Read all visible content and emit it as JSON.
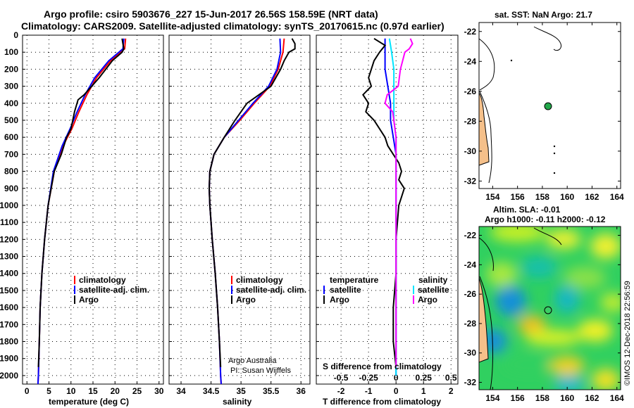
{
  "header": {
    "line1": "Argo profile: csiro 5903676_227 15-Jun-2017 26.56S 158.59E (NRT data)",
    "line2": "Climatology: CARS2009. Satellite-adjusted climatology: synTS_20170615.nc (0.97d earlier)"
  },
  "colors": {
    "climatology": "#ff0000",
    "satellite": "#0000ff",
    "argo": "#000000",
    "temp_satellite_diff": "#00e5ff",
    "sal_argo_diff": "#ff00ff",
    "land": "#f5c08a"
  },
  "depth_ticks": [
    "0",
    "100",
    "200",
    "300",
    "400",
    "500",
    "600",
    "700",
    "800",
    "900",
    "1000",
    "1100",
    "1200",
    "1300",
    "1400",
    "1500",
    "1600",
    "1700",
    "1800",
    "1900",
    "2000"
  ],
  "chart_data": [
    {
      "type": "line",
      "xlabel": "temperature (deg C)",
      "x_ticks": [
        "0",
        "5",
        "10",
        "15",
        "20",
        "25",
        "30"
      ],
      "xlim": [
        -1,
        31
      ],
      "ylim": [
        2050,
        0
      ],
      "legend": [
        "climatology",
        "satellite-adj. clim.",
        "Argo"
      ],
      "series": [
        {
          "name": "climatology",
          "depth": [
            20,
            80,
            150,
            250,
            350,
            450,
            550,
            650,
            800,
            1000,
            1200,
            1400,
            1600,
            1800,
            2000,
            2050
          ],
          "values": [
            22.4,
            22.2,
            19.0,
            15.8,
            13.6,
            11.8,
            10.2,
            8.2,
            6.2,
            4.8,
            4.0,
            3.4,
            3.0,
            2.8,
            2.6,
            2.5
          ]
        },
        {
          "name": "satellite-adj. clim.",
          "depth": [
            20,
            80,
            150,
            250,
            350,
            450,
            550,
            650,
            800,
            1000,
            1200,
            1400,
            1600,
            1800,
            2000,
            2050
          ],
          "values": [
            22.0,
            21.8,
            18.6,
            15.4,
            13.2,
            11.4,
            9.8,
            8.0,
            6.0,
            4.8,
            4.0,
            3.4,
            3.0,
            2.8,
            2.6,
            2.5
          ]
        },
        {
          "name": "Argo",
          "depth": [
            20,
            50,
            80,
            100,
            150,
            250,
            350,
            380,
            450,
            550,
            600,
            700,
            800,
            1000,
            1200,
            1400,
            1600,
            1800,
            1950
          ],
          "values": [
            21.6,
            21.8,
            22.0,
            21.6,
            19.4,
            16.4,
            13.0,
            11.6,
            10.8,
            10.0,
            9.0,
            7.8,
            6.2,
            4.8,
            4.0,
            3.4,
            3.0,
            2.8,
            2.6
          ]
        }
      ]
    },
    {
      "type": "line",
      "xlabel": "salinity",
      "x_ticks": [
        "34",
        "34.5",
        "35",
        "35.5",
        "36"
      ],
      "xlim": [
        33.8,
        36.15
      ],
      "ylim": [
        2050,
        0
      ],
      "legend": [
        "climatology",
        "satellite-adj. clim.",
        "Argo"
      ],
      "annotation": [
        "Argo Australia",
        "PI: Susan Wijffels"
      ],
      "series": [
        {
          "name": "climatology",
          "depth": [
            20,
            100,
            200,
            300,
            400,
            500,
            600,
            700,
            800,
            900,
            1000,
            1200,
            1400,
            1600,
            1800,
            2000,
            2050
          ],
          "values": [
            35.72,
            35.7,
            35.62,
            35.48,
            35.22,
            34.98,
            34.72,
            34.55,
            34.48,
            34.47,
            34.48,
            34.52,
            34.57,
            34.61,
            34.64,
            34.66,
            34.67
          ]
        },
        {
          "name": "satellite-adj. clim.",
          "depth": [
            20,
            100,
            200,
            300,
            400,
            500,
            600,
            700,
            800,
            900,
            1000,
            1200,
            1400,
            1600,
            1800,
            2000,
            2050
          ],
          "values": [
            35.65,
            35.66,
            35.6,
            35.46,
            35.2,
            34.96,
            34.72,
            34.55,
            34.48,
            34.47,
            34.48,
            34.52,
            34.57,
            34.61,
            34.64,
            34.66,
            34.67
          ]
        },
        {
          "name": "Argo",
          "depth": [
            20,
            50,
            80,
            100,
            150,
            200,
            300,
            400,
            500,
            600,
            700,
            800,
            900,
            1000,
            1200,
            1400,
            1600,
            1800,
            1950
          ],
          "values": [
            35.85,
            35.9,
            35.9,
            35.8,
            35.72,
            35.66,
            35.5,
            35.1,
            34.9,
            34.72,
            34.55,
            34.48,
            34.47,
            34.48,
            34.52,
            34.57,
            34.61,
            34.64,
            34.66
          ]
        }
      ]
    },
    {
      "type": "line",
      "xlabel": "T difference from climatology",
      "x_ticks": [
        "-2",
        "-1",
        "0",
        "1",
        "2"
      ],
      "xlim": [
        -2.9,
        2.25
      ],
      "top_xlabel": "S difference from climatology",
      "top_x_ticks": [
        "-0.5",
        "-0.25",
        "0",
        "0.25",
        "0.5"
      ],
      "ylim": [
        2050,
        0
      ],
      "legend_left": {
        "title": "temperature",
        "items": [
          "satellite",
          "Argo"
        ]
      },
      "legend_right": {
        "title": "salinity",
        "items": [
          "satellite",
          "Argo"
        ]
      },
      "series": [
        {
          "name": "temperature satellite",
          "depth": [
            20,
            100,
            200,
            300,
            400,
            500,
            600,
            700,
            800,
            1000,
            1500,
            2000
          ],
          "values": [
            -0.4,
            -0.4,
            -0.4,
            -0.3,
            -0.2,
            -0.2,
            -0.1,
            0.0,
            0.0,
            0.0,
            0.0,
            0.0
          ]
        },
        {
          "name": "temperature Argo",
          "depth": [
            20,
            60,
            100,
            150,
            200,
            250,
            300,
            350,
            400,
            450,
            500,
            550,
            600,
            650,
            700,
            750,
            800,
            850,
            900,
            950,
            1000,
            1200,
            1400,
            1600,
            1800,
            1950
          ],
          "values": [
            -0.8,
            -0.4,
            -0.6,
            -0.8,
            -0.9,
            -1.0,
            -0.9,
            -1.2,
            -1.0,
            -1.1,
            -0.8,
            -0.6,
            -0.4,
            -0.3,
            -0.1,
            0.1,
            0.2,
            0.1,
            0.3,
            0.2,
            0.1,
            0.0,
            0.0,
            -0.1,
            -0.1,
            0.0
          ]
        },
        {
          "name": "salinity satellite",
          "depth": [
            20,
            100,
            200,
            300,
            400,
            500,
            600,
            800,
            1000,
            1500,
            2000
          ],
          "values": [
            -0.06,
            -0.04,
            -0.02,
            -0.02,
            -0.02,
            -0.02,
            0.0,
            0.0,
            0.0,
            0.0,
            0.0
          ]
        },
        {
          "name": "salinity Argo",
          "depth": [
            20,
            50,
            80,
            100,
            150,
            200,
            300,
            350,
            400,
            450,
            500,
            600,
            700,
            800,
            1000,
            1500,
            1950
          ],
          "values": [
            0.13,
            0.15,
            0.12,
            0.08,
            0.06,
            0.04,
            0.02,
            -0.08,
            -0.1,
            -0.03,
            -0.02,
            0.0,
            0.0,
            0.0,
            0.0,
            0.0,
            0.0
          ]
        }
      ]
    }
  ],
  "map_top": {
    "title": "sat. SST: NaN Argo: 21.7",
    "lat_ticks": [
      "-22",
      "-24",
      "-26",
      "-28",
      "-30",
      "-32"
    ],
    "lon_ticks": [
      "154",
      "156",
      "158",
      "160",
      "162",
      "164"
    ],
    "float_position": {
      "lon": 158.59,
      "lat": -26.56
    }
  },
  "map_bottom": {
    "title1": "Altim. SLA: -0.01",
    "title2": "Argo h1000: -0.11 h2000: -0.12",
    "lat_ticks": [
      "-22",
      "-24",
      "-26",
      "-28",
      "-30",
      "-32"
    ],
    "lon_ticks": [
      "154",
      "156",
      "158",
      "160",
      "162",
      "164"
    ],
    "float_position": {
      "lon": 158.59,
      "lat": -26.56
    }
  },
  "credit": "©IMOS 12-Dec-2018 22:56:59"
}
